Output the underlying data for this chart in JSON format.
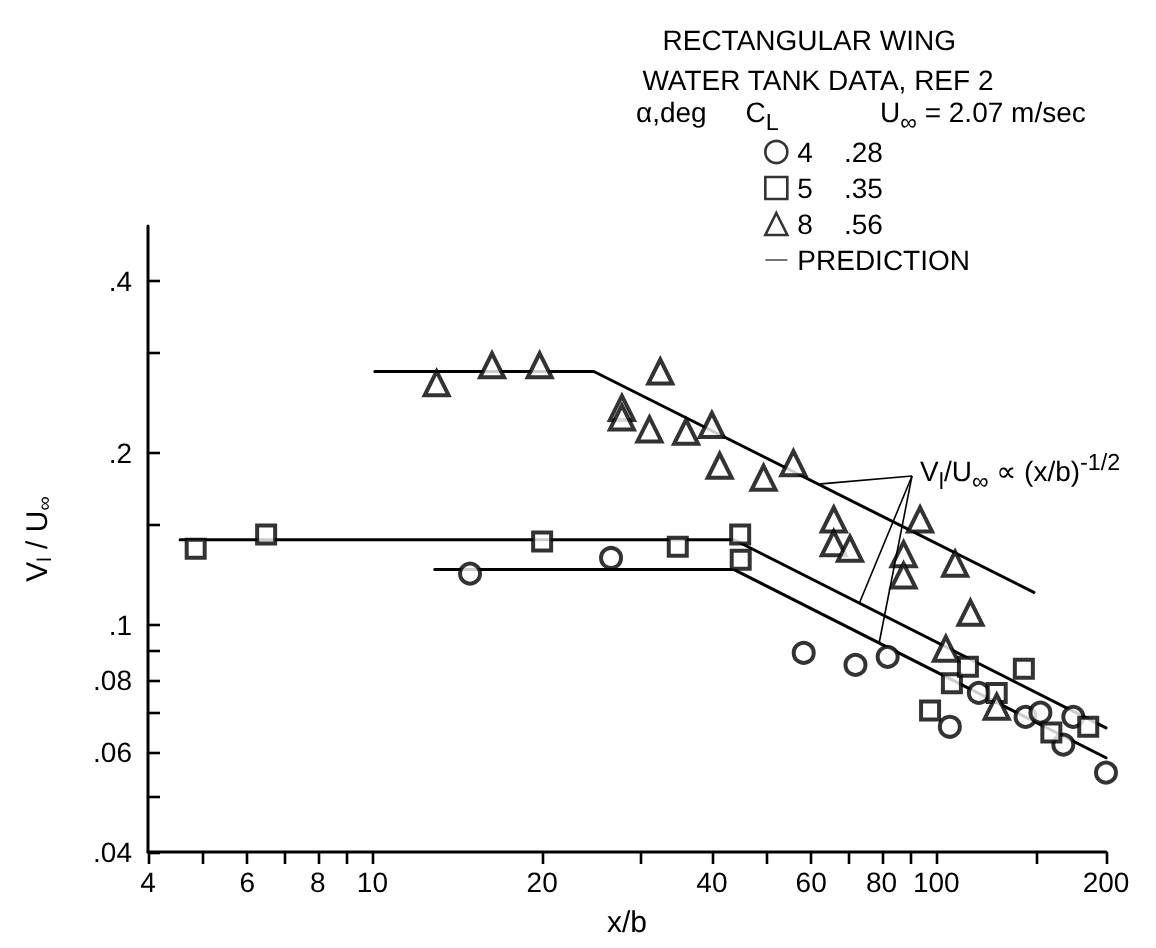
{
  "chart_data": {
    "type": "scatter",
    "title": "RECTANGULAR WING",
    "subtitle": "WATER TANK DATA, REF 2",
    "legend_title": "α,deg     C$_{L}$",
    "xlabel": "x/b",
    "ylabel": "V$_{l}$ / U$_{∞}$",
    "annotations": [
      "U$_{∞}$ = 2.07 m/sec",
      {
        "text": "V$_{l}$/U$_{∞}$ ∝ (x/b)$^{-1/2}$",
        "x": 73,
        "y": 0.109
      }
    ],
    "log": "xy",
    "grid": false,
    "legend": "top right",
    "xlim": [
      4,
      200
    ],
    "ylim": [
      0.04,
      0.5
    ],
    "xticks": [
      4,
      {
        "value": 5,
        "label": null
      },
      6,
      {
        "value": 7,
        "label": null
      },
      8,
      {
        "value": 9,
        "label": null
      },
      10,
      20,
      {
        "value": 30,
        "label": null
      },
      40,
      {
        "value": 50,
        "label": null
      },
      60,
      {
        "value": 70,
        "label": null
      },
      80,
      {
        "value": 90,
        "label": null
      },
      100,
      {
        "value": 150,
        "label": null
      },
      200
    ],
    "yticks": [
      {
        "value": 0.04,
        "label": ".04"
      },
      {
        "value": 0.05,
        "label": null
      },
      {
        "value": 0.06,
        "label": ".06"
      },
      {
        "value": 0.07,
        "label": null
      },
      {
        "value": 0.08,
        "label": ".08"
      },
      {
        "value": 0.09,
        "label": null
      },
      {
        "value": 0.1,
        "label": ".1"
      },
      {
        "value": 0.15,
        "label": null
      },
      {
        "value": 0.2,
        "label": ".2"
      },
      {
        "value": 0.3,
        "label": null
      },
      {
        "value": 0.4,
        "label": ".4"
      }
    ],
    "series": [
      {
        "name": "4    .28",
        "marker": "circle",
        "color": "#000000",
        "x": [
          14.9,
          26.5,
          58.2,
          71.9,
          82,
          105.7,
          119,
          144,
          153,
          168,
          175,
          200
        ],
        "values": [
          0.123,
          0.131,
          0.0893,
          0.0851,
          0.0879,
          0.0663,
          0.076,
          0.069,
          0.0702,
          0.0617,
          0.069,
          0.0551
        ]
      },
      {
        "name": "5    .35",
        "marker": "square",
        "color": "#000000",
        "x": [
          4.86,
          6.48,
          20,
          34.8,
          44.9,
          45,
          97.5,
          106.6,
          113.8,
          128,
          143,
          160,
          186
        ],
        "values": [
          0.136,
          0.144,
          0.14,
          0.137,
          0.144,
          0.13,
          0.0708,
          0.079,
          0.0845,
          0.076,
          0.0838,
          0.0648,
          0.0663
        ]
      },
      {
        "name": "8    .56",
        "marker": "triangle",
        "color": "#000000",
        "x": [
          13,
          16.3,
          19.8,
          32.4,
          27.7,
          27.7,
          31,
          36,
          40,
          41.3,
          49.4,
          55.8,
          65.8,
          65.8,
          70.3,
          93.6,
          87.5,
          87.5,
          108,
          115,
          104,
          128
        ],
        "values": [
          0.265,
          0.285,
          0.285,
          0.278,
          0.24,
          0.231,
          0.22,
          0.218,
          0.224,
          0.19,
          0.181,
          0.192,
          0.153,
          0.139,
          0.136,
          0.153,
          0.133,
          0.122,
          0.128,
          0.105,
          0.0908,
          0.0719
        ]
      },
      {
        "name": "PREDICTION",
        "type": "line",
        "marker": "none",
        "line_style": "solid",
        "color": "#000000",
        "x": [
          10.1,
          24.7,
          149
        ],
        "values": [
          0.278,
          0.278,
          0.114
        ]
      },
      {
        "type": "line",
        "marker": "none",
        "line_style": "solid",
        "color": "#000000",
        "x": [
          4.56,
          43.8,
          200
        ],
        "values": [
          0.141,
          0.141,
          0.066
        ]
      },
      {
        "type": "line",
        "marker": "none",
        "line_style": "solid",
        "color": "#000000",
        "x": [
          12.9,
          43.8,
          200
        ],
        "values": [
          0.125,
          0.125,
          0.0585
        ]
      }
    ]
  }
}
